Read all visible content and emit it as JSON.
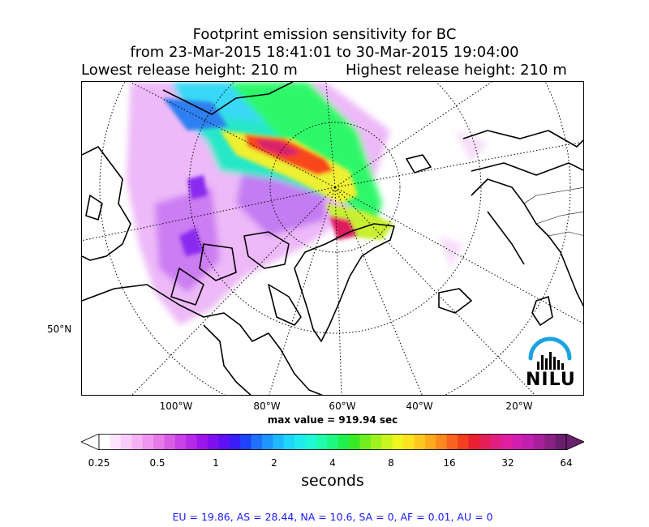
{
  "title": {
    "line1": "Footprint emission sensitivity for BC",
    "line2": "from 23-Mar-2015 18:41:01 to 30-Mar-2015 19:04:00",
    "lowest": "Lowest release height: 210 m",
    "highest": "Highest release height: 210 m"
  },
  "axes": {
    "lon_labels": [
      "100°W",
      "80°W",
      "60°W",
      "40°W",
      "20°W"
    ],
    "lat_labels": [
      "50°N"
    ]
  },
  "max_value": "max value = 919.94 sec",
  "colorbar": {
    "ticks": [
      "0.25",
      "0.5",
      "1",
      "2",
      "4",
      "8",
      "16",
      "32",
      "64"
    ],
    "label": "seconds",
    "colors": [
      "#ffffff",
      "#fde6fd",
      "#f9cdf9",
      "#f4b2f4",
      "#ee96ee",
      "#e57ae9",
      "#d95ee6",
      "#c840e6",
      "#b52ae8",
      "#9d16ec",
      "#8010f0",
      "#6010f5",
      "#3a1ef8",
      "#1f44fb",
      "#1f70ff",
      "#1f95ff",
      "#1fb8ff",
      "#1fd6f8",
      "#1febed",
      "#1ff8d4",
      "#1ffcac",
      "#1ff880",
      "#1ff050",
      "#3aea25",
      "#70ee1f",
      "#a0f21f",
      "#c9f51f",
      "#eef51f",
      "#fde21f",
      "#fdc81f",
      "#fdaa1f",
      "#fc8a1f",
      "#f8641f",
      "#f2401f",
      "#ea1f30",
      "#e41f58",
      "#e21f80",
      "#de1fa0",
      "#d21fb0",
      "#c01fb0",
      "#a81f9c",
      "#8a1f86",
      "#6a1f6e"
    ]
  },
  "footer": "EU = 19.86,  AS = 28.44,  NA = 10.6,  SA = 0,  AF = 0.01,  AU = 0",
  "logo": {
    "text": "NILU",
    "arc_color": "#1aa3e0"
  }
}
